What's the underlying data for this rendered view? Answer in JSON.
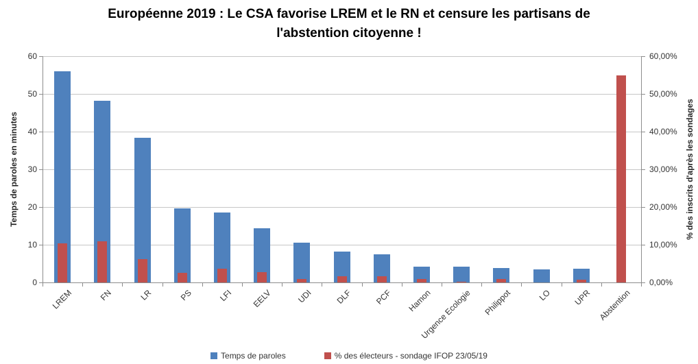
{
  "chart_data": {
    "type": "bar",
    "title": "Européenne 2019 : Le CSA favorise LREM et le RN et censure les partisans de l'abstention citoyenne !",
    "title_lines": [
      "Européenne 2019 : Le CSA favorise LREM et le RN et censure les partisans de",
      "l'abstention citoyenne !"
    ],
    "categories": [
      "LREM",
      "FN",
      "LR",
      "PS",
      "LFI",
      "EELV",
      "UDI",
      "DLF",
      "PCF",
      "Hamon",
      "Urgence Ecologie",
      "Philippot",
      "LO",
      "UPR",
      "Abstention"
    ],
    "series": [
      {
        "name": "Temps de paroles",
        "axis": "left",
        "unit": "minutes",
        "color": "#4f81bd",
        "values": [
          56,
          48.2,
          38.3,
          19.7,
          18.6,
          14.3,
          10.6,
          8.1,
          7.4,
          4.2,
          4.1,
          3.9,
          3.5,
          3.6,
          0
        ]
      },
      {
        "name": "% des électeurs - sondage IFOP 23/05/19",
        "axis": "right",
        "unit": "percent of inscrits",
        "color": "#c0504d",
        "values": [
          10.3,
          11,
          6.2,
          2.5,
          3.7,
          2.7,
          0.9,
          1.6,
          1.6,
          1,
          0.25,
          1,
          0,
          0.8,
          55
        ]
      }
    ],
    "left_axis": {
      "label": "Temps de paroles en minutes",
      "min": 0,
      "max": 60,
      "step": 10,
      "tick_labels": [
        "0",
        "10",
        "20",
        "30",
        "40",
        "50",
        "60"
      ]
    },
    "right_axis": {
      "label": "% des inscrits d'après les sondages",
      "min": 0,
      "max": 60,
      "step": 10,
      "tick_labels": [
        "0,00%",
        "10,00%",
        "20,00%",
        "30,00%",
        "40,00%",
        "50,00%",
        "60,00%"
      ]
    },
    "grid": true,
    "legend_position": "bottom",
    "colors": {
      "gridline": "#c6c6c6",
      "axis_line": "#8c8c8c",
      "text": "#333333",
      "title": "#000000"
    }
  }
}
